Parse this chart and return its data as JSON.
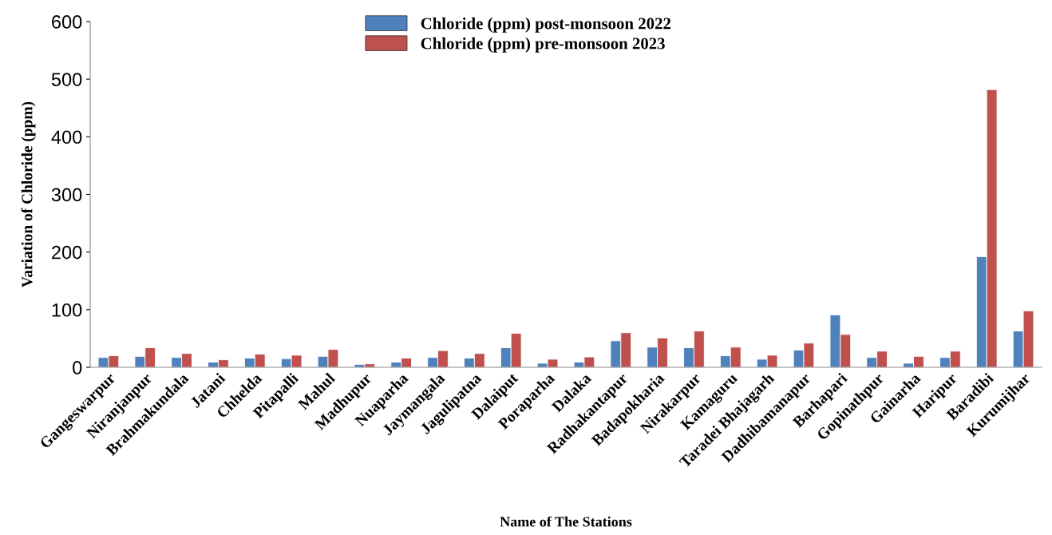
{
  "chart_data": {
    "type": "bar",
    "xlabel": "Name of The Stations",
    "ylabel": "Variation of Chloride (ppm)",
    "categories": [
      "Gangeswarpur",
      "Niranjanpur",
      "Brahmakundala",
      "Jatani",
      "Chhelda",
      "Pitapalli",
      "Mahul",
      "Madhupur",
      "Nuaparha",
      "Jaymangala",
      "Jagulipatna",
      "Dalaiput",
      "Poraparha",
      "Dalaka",
      "Radhakantapur",
      "Badapokharia",
      "Nirakarpur",
      "Kamaguru",
      "Taradei Bhajagarh",
      "Dadhibamanapur",
      "Barhapari",
      "Gopinathpur",
      "Gainarha",
      "Haripur",
      "Baradibi",
      "Kurumijhar"
    ],
    "series": [
      {
        "name": "Chloride (ppm) post-monsoon 2022",
        "color": "#4f81bd",
        "values": [
          17,
          19,
          17,
          9,
          16,
          15,
          19,
          5,
          9,
          17,
          16,
          34,
          7,
          9,
          46,
          35,
          34,
          20,
          14,
          30,
          91,
          17,
          7,
          17,
          192,
          63
        ]
      },
      {
        "name": "Chloride (ppm) pre-monsoon 2023",
        "color": "#c0504d",
        "values": [
          20,
          34,
          24,
          13,
          23,
          21,
          31,
          6,
          16,
          29,
          24,
          59,
          14,
          18,
          60,
          51,
          63,
          35,
          21,
          42,
          57,
          28,
          19,
          28,
          482,
          98
        ]
      }
    ],
    "ylim": [
      0,
      600
    ],
    "yticks": [
      0,
      100,
      200,
      300,
      400,
      500,
      600
    ],
    "grid": false,
    "legend": "top"
  }
}
